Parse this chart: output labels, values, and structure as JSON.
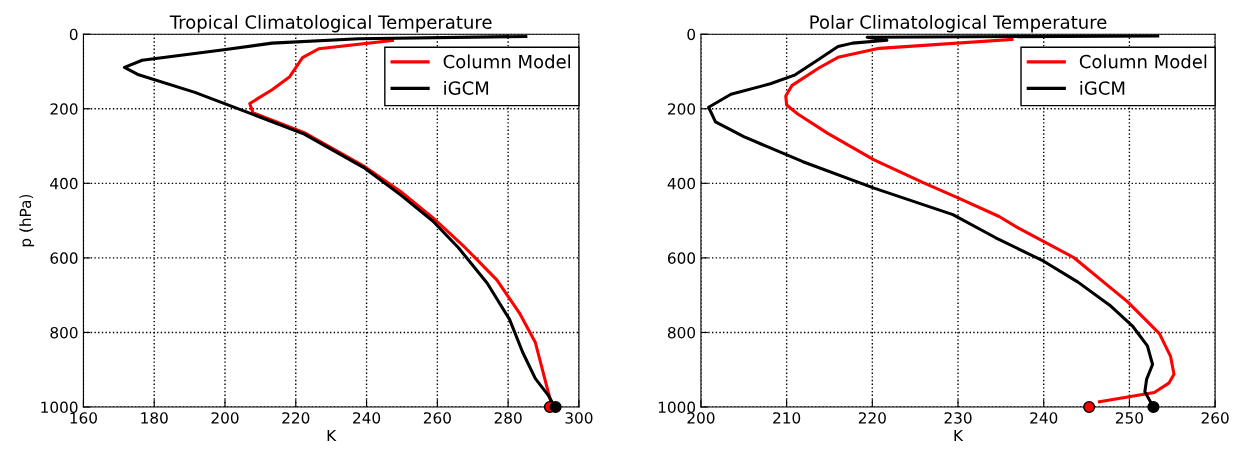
{
  "chart_data": [
    {
      "type": "line",
      "title": "Tropical Climatological Temperature",
      "xlabel": "K",
      "ylabel": "p (hPa)",
      "xlim": [
        160,
        300
      ],
      "xticks": [
        160,
        180,
        200,
        220,
        240,
        260,
        280,
        300
      ],
      "ylim": [
        1000,
        0
      ],
      "yticks": [
        0,
        200,
        400,
        600,
        800,
        1000
      ],
      "grid": true,
      "legend": "top right",
      "line_style": "solid",
      "series": [
        {
          "name": "Column Model",
          "color": "#ff0000",
          "x": [
            247.3,
            226.5,
            221.9,
            218.3,
            213.3,
            207,
            207.9,
            222.4,
            239.6,
            249.6,
            258.7,
            267.8,
            270.5,
            276.8,
            283.2,
            287.7,
            291.3,
            292.2
          ],
          "values": [
            17,
            39,
            63,
            114,
            149,
            186,
            211,
            264,
            356,
            422,
            492,
            572,
            598,
            659,
            748,
            827,
            959,
            990
          ]
        },
        {
          "name": "iGCM",
          "color": "#000000",
          "x": [
            285,
            237.8,
            213.3,
            199.7,
            176.6,
            171.6,
            175.6,
            191.5,
            207.9,
            222.4,
            239.6,
            249.6,
            258.7,
            265.9,
            274.1,
            280.4,
            284.1,
            287.7,
            291.3,
            293.2
          ],
          "values": [
            6,
            12,
            24,
            42,
            70,
            89,
            109,
            156,
            215,
            268,
            360,
            431,
            501,
            572,
            668,
            765,
            853,
            924,
            968,
            1000
          ]
        },
        {
          "type": "scatter",
          "marker": "circle",
          "color": "#ff0000",
          "x": [
            291.8
          ],
          "values": [
            1000
          ]
        },
        {
          "type": "scatter",
          "marker": "circle",
          "color": "#000000",
          "x": [
            293.4
          ],
          "values": [
            1000
          ]
        }
      ]
    },
    {
      "type": "line",
      "title": "Polar Climatological Temperature",
      "xlabel": "K",
      "xlim": [
        200,
        260
      ],
      "xticks": [
        200,
        210,
        220,
        230,
        240,
        250,
        260
      ],
      "ylim": [
        1000,
        0
      ],
      "yticks": [
        0,
        200,
        400,
        600,
        800,
        1000
      ],
      "grid": true,
      "legend": "top right",
      "line_style": "solid",
      "series": [
        {
          "name": "Column Model",
          "color": "#ff0000",
          "x": [
            236.3,
            220.8,
            216,
            213.8,
            210.6,
            209.9,
            210,
            211.3,
            214.8,
            220.2,
            226,
            229.8,
            234.8,
            236.9,
            243.5,
            249.8,
            253.5,
            254.8,
            255.2,
            254.6,
            252.9,
            246.5
          ],
          "values": [
            14,
            38,
            62,
            90,
            138,
            166,
            190,
            214,
            266,
            337,
            399,
            437,
            489,
            518,
            599,
            718,
            803,
            864,
            912,
            936,
            961,
            986
          ]
        },
        {
          "name": "iGCM",
          "color": "#000000",
          "x": [
            253.3,
            219.4,
            221.7,
            217.7,
            216,
            213.5,
            211,
            208.1,
            203.5,
            200.9,
            201.7,
            205,
            211.9,
            220.2,
            229.4,
            234.4,
            240,
            244,
            247.7,
            250.4,
            252.1,
            252.7,
            252,
            251.8,
            252.6
          ],
          "values": [
            5,
            8,
            16,
            24,
            33,
            71,
            109,
            133,
            161,
            196,
            235,
            275,
            342,
            413,
            484,
            546,
            609,
            665,
            727,
            784,
            836,
            886,
            926,
            959,
            992
          ]
        },
        {
          "type": "scatter",
          "marker": "circle",
          "color": "#ff0000",
          "x": [
            245.3
          ],
          "values": [
            1000
          ]
        },
        {
          "type": "scatter",
          "marker": "circle",
          "color": "#000000",
          "x": [
            252.8
          ],
          "values": [
            1000
          ]
        }
      ]
    }
  ]
}
